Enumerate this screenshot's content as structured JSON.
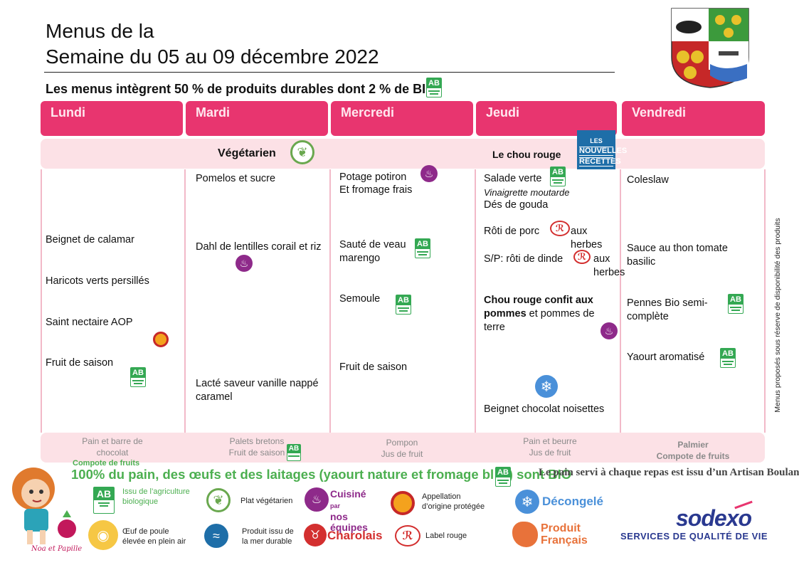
{
  "header": {
    "title_line1": "Menus de la",
    "title_line2": "Semaine du 05 au 09 décembre 2022",
    "subtitle": "Les menus intègrent 50 % de produits durables dont 2   % de BIO"
  },
  "days": [
    "Lundi",
    "Mardi",
    "Mercredi",
    "Jeudi",
    "Vendredi"
  ],
  "themes": {
    "mardi": "Végétarien",
    "jeudi": "Le chou rouge",
    "jeudi_badge_line1": "LES",
    "jeudi_badge_line2": "NOUVELLES",
    "jeudi_badge_line3": "RECETTES"
  },
  "menu": {
    "lundi": [
      "Beignet de calamar",
      "Haricots verts persillés",
      "Saint nectaire AOP",
      "Fruit de saison"
    ],
    "mardi": [
      "Pomelos et sucre",
      "Dahl de lentilles  corail et riz",
      "Lacté saveur vanille nappé caramel"
    ],
    "mercredi": [
      "Potage potiron",
      "Et fromage frais",
      "Sauté de veau marengo",
      "Semoule",
      "Fruit de saison"
    ],
    "jeudi": {
      "entree": "Salade verte",
      "vinaigrette": "Vinaigrette moutarde",
      "fromage": "Dés de gouda",
      "plat_a": "Rôti de porc",
      "plat_a_end": "aux herbes",
      "plat_b": "S/P: rôti de dinde",
      "plat_b_end": "aux herbes",
      "accomp_bold": "Chou rouge confit aux pommes",
      "accomp_rest": " et pommes de terre",
      "dessert": "Beignet chocolat noisettes"
    },
    "vendredi": [
      "Coleslaw",
      "Sauce au thon tomate basilic",
      "Pennes Bio semi-complète",
      "Yaourt aromatisé"
    ]
  },
  "gouter": {
    "lundi": [
      "Pain et barre de",
      "chocolat",
      "Compote de fruits"
    ],
    "mardi": [
      "Palets bretons",
      "Fruit de saison"
    ],
    "mercredi": [
      "Pompon",
      "Jus de fruit"
    ],
    "jeudi": [
      "Pain et beurre",
      "Jus de fruit"
    ],
    "vendredi": [
      "Palmier",
      "Compote de fruits"
    ]
  },
  "side_note": "Menus proposés sous réserve de disponibilité des produits",
  "footer": {
    "pain_line": "100% du pain, des œufs et des laitages (yaourt nature et fromage bl     c ) sont BIO",
    "boulanger": "Le pain servi à chaque repas est  issu d’un Artisan Boulanger",
    "legend": {
      "bio": [
        "Issu de l’agriculture",
        "biologique"
      ],
      "veg": "Plat végétarien",
      "cuisine": [
        "Cuisiné",
        "par",
        "nos équipes"
      ],
      "aop": [
        "Appellation",
        "d’origine protégée"
      ],
      "decongele": "Décongelé",
      "oeuf": [
        "Œuf de poule",
        "élevée en plein air"
      ],
      "mer": [
        "Produit issu de",
        "la mer durable"
      ],
      "charolais": "Charolais",
      "label_rouge": "Label rouge",
      "produit_fr": [
        "Produit",
        "Français"
      ]
    },
    "brand": "sodexo",
    "brand_sub": "SERVICES DE QUALITÉ DE VIE",
    "mascot_caption": "Noa et Papille"
  },
  "colors": {
    "day_header": "#e8356f",
    "row_bg": "#fce1e6",
    "bio_green": "#4caf50",
    "brand_blue": "#2a3990"
  }
}
